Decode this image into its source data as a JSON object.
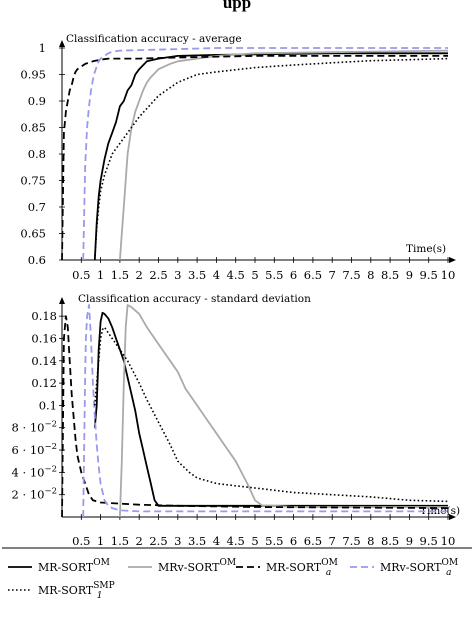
{
  "page_heading": "upp",
  "chart_data": [
    {
      "type": "line",
      "title": "Classification accuracy - average",
      "xlabel": "Time(s)",
      "ylabel": "",
      "xlim": [
        0,
        10
      ],
      "ylim": [
        0.6,
        1
      ],
      "x_ticks": [
        "0.5",
        "1",
        "1.5",
        "2",
        "2.5",
        "3",
        "3.5",
        "4",
        "4.5",
        "5",
        "5.5",
        "6",
        "6.5",
        "7",
        "7.5",
        "8",
        "8.5",
        "9",
        "9.5",
        "10"
      ],
      "y_ticks": [
        "0.6",
        "0.65",
        "0.7",
        "0.75",
        "0.8",
        "0.85",
        "0.9",
        "0.95",
        "1"
      ],
      "y_tick_values": [
        0.6,
        0.65,
        0.7,
        0.75,
        0.8,
        0.85,
        0.9,
        0.95,
        1
      ],
      "series": [
        {
          "name": "MR-SORT^OM",
          "x": [
            0.85,
            0.9,
            0.95,
            1.0,
            1.1,
            1.2,
            1.3,
            1.4,
            1.5,
            1.6,
            1.7,
            1.8,
            1.9,
            2.0,
            2.2,
            2.5,
            3.0,
            4.0,
            5.0,
            7.0,
            10.0
          ],
          "y": [
            0.6,
            0.67,
            0.72,
            0.75,
            0.79,
            0.82,
            0.84,
            0.86,
            0.89,
            0.9,
            0.92,
            0.93,
            0.95,
            0.96,
            0.975,
            0.98,
            0.985,
            0.987,
            0.988,
            0.99,
            0.99
          ]
        },
        {
          "name": "MRv-SORT^OM",
          "x": [
            1.5,
            1.55,
            1.6,
            1.65,
            1.7,
            1.8,
            1.9,
            2.0,
            2.1,
            2.2,
            2.3,
            2.5,
            2.8,
            3.0,
            3.5,
            4.0,
            5.0,
            7.0,
            10.0
          ],
          "y": [
            0.6,
            0.65,
            0.7,
            0.75,
            0.8,
            0.85,
            0.88,
            0.9,
            0.92,
            0.935,
            0.945,
            0.96,
            0.97,
            0.975,
            0.98,
            0.985,
            0.99,
            0.992,
            0.995
          ]
        },
        {
          "name": "MR-SORT_a^OM",
          "x": [
            0.0,
            0.05,
            0.1,
            0.15,
            0.2,
            0.25,
            0.3,
            0.35,
            0.4,
            0.5,
            0.6,
            0.8,
            1.0,
            1.2,
            1.5,
            2.0,
            3.0,
            5.0,
            10.0
          ],
          "y": [
            0.6,
            0.84,
            0.88,
            0.9,
            0.92,
            0.93,
            0.945,
            0.955,
            0.96,
            0.965,
            0.97,
            0.975,
            0.978,
            0.98,
            0.98,
            0.98,
            0.982,
            0.985,
            0.985
          ]
        },
        {
          "name": "MRv-SORT_a^OM",
          "x": [
            0.55,
            0.6,
            0.65,
            0.7,
            0.75,
            0.8,
            0.85,
            0.9,
            0.95,
            1.0,
            1.1,
            1.2,
            1.3,
            1.5,
            2.0,
            3.0,
            4.0,
            10.0
          ],
          "y": [
            0.6,
            0.78,
            0.85,
            0.89,
            0.92,
            0.94,
            0.955,
            0.965,
            0.975,
            0.98,
            0.985,
            0.99,
            0.993,
            0.995,
            0.996,
            0.998,
            1.0,
            1.0
          ]
        },
        {
          "name": "MR-SORT_1^SMP",
          "x": [
            0.85,
            0.9,
            0.95,
            1.0,
            1.1,
            1.2,
            1.3,
            1.4,
            1.5,
            1.7,
            2.0,
            2.5,
            3.0,
            3.5,
            4.0,
            5.0,
            6.0,
            7.0,
            8.0,
            9.0,
            10.0
          ],
          "y": [
            0.6,
            0.66,
            0.7,
            0.73,
            0.76,
            0.78,
            0.8,
            0.81,
            0.82,
            0.84,
            0.87,
            0.91,
            0.935,
            0.95,
            0.955,
            0.963,
            0.968,
            0.972,
            0.976,
            0.978,
            0.98
          ]
        }
      ]
    },
    {
      "type": "line",
      "title": "Classification accuracy - standard deviation",
      "xlabel": "Time(s)",
      "ylabel": "",
      "xlim": [
        0,
        10
      ],
      "ylim": [
        0,
        0.19
      ],
      "x_ticks": [
        "0.5",
        "1",
        "1.5",
        "2",
        "2.5",
        "3",
        "3.5",
        "4",
        "4.5",
        "5",
        "5.5",
        "6",
        "6.5",
        "7",
        "7.5",
        "8",
        "8.5",
        "9",
        "9.5",
        "10"
      ],
      "y_ticks": [
        "2 · 10^−2",
        "4 · 10^−2",
        "6 · 10^−2",
        "8 · 10^−2",
        "0.1",
        "0.12",
        "0.14",
        "0.16",
        "0.18"
      ],
      "y_tick_values": [
        0.02,
        0.04,
        0.06,
        0.08,
        0.1,
        0.12,
        0.14,
        0.16,
        0.18
      ],
      "series": [
        {
          "name": "MR-SORT^OM",
          "x": [
            0.85,
            0.9,
            0.95,
            1.0,
            1.05,
            1.1,
            1.2,
            1.3,
            1.4,
            1.5,
            1.6,
            1.7,
            1.8,
            1.9,
            2.0,
            2.1,
            2.2,
            2.3,
            2.4,
            2.5,
            3.0,
            5.0,
            10.0
          ],
          "y": [
            0.08,
            0.1,
            0.15,
            0.175,
            0.183,
            0.182,
            0.178,
            0.17,
            0.16,
            0.15,
            0.14,
            0.125,
            0.11,
            0.095,
            0.075,
            0.06,
            0.045,
            0.03,
            0.015,
            0.01,
            0.01,
            0.01,
            0.01
          ]
        },
        {
          "name": "MRv-SORT^OM",
          "x": [
            1.5,
            1.55,
            1.6,
            1.65,
            1.7,
            1.8,
            2.0,
            2.2,
            2.5,
            2.8,
            3.0,
            3.2,
            3.5,
            3.8,
            4.0,
            4.2,
            4.5,
            4.8,
            5.0,
            5.2,
            5.5,
            6.0,
            7.0,
            10.0
          ],
          "y": [
            0.0,
            0.05,
            0.12,
            0.17,
            0.19,
            0.188,
            0.182,
            0.17,
            0.155,
            0.14,
            0.13,
            0.115,
            0.1,
            0.085,
            0.075,
            0.065,
            0.05,
            0.03,
            0.015,
            0.01,
            0.01,
            0.009,
            0.009,
            0.009
          ]
        },
        {
          "name": "MR-SORT_a^OM",
          "x": [
            0.0,
            0.05,
            0.1,
            0.15,
            0.2,
            0.25,
            0.3,
            0.35,
            0.4,
            0.5,
            0.6,
            0.7,
            0.8,
            1.0,
            1.5,
            2.0,
            3.0,
            5.0,
            10.0
          ],
          "y": [
            0.0,
            0.16,
            0.18,
            0.17,
            0.14,
            0.11,
            0.09,
            0.07,
            0.055,
            0.04,
            0.03,
            0.02,
            0.015,
            0.013,
            0.012,
            0.011,
            0.01,
            0.009,
            0.008
          ]
        },
        {
          "name": "MRv-SORT_a^OM",
          "x": [
            0.55,
            0.6,
            0.62,
            0.65,
            0.7,
            0.75,
            0.8,
            0.85,
            0.9,
            0.95,
            1.0,
            1.1,
            1.2,
            1.3,
            1.5,
            2.0,
            3.0,
            10.0
          ],
          "y": [
            0.0,
            0.13,
            0.16,
            0.18,
            0.19,
            0.16,
            0.12,
            0.09,
            0.065,
            0.045,
            0.03,
            0.015,
            0.01,
            0.008,
            0.006,
            0.005,
            0.005,
            0.005
          ]
        },
        {
          "name": "MR-SORT_1^SMP",
          "x": [
            0.85,
            0.9,
            1.0,
            1.05,
            1.1,
            1.2,
            1.3,
            1.5,
            1.7,
            2.0,
            2.2,
            2.5,
            2.8,
            3.0,
            3.3,
            3.5,
            4.0,
            4.5,
            5.0,
            6.0,
            7.0,
            8.0,
            9.0,
            10.0
          ],
          "y": [
            0.1,
            0.12,
            0.16,
            0.168,
            0.17,
            0.165,
            0.16,
            0.15,
            0.14,
            0.12,
            0.105,
            0.085,
            0.065,
            0.05,
            0.04,
            0.035,
            0.03,
            0.028,
            0.026,
            0.022,
            0.02,
            0.018,
            0.015,
            0.014
          ]
        }
      ]
    }
  ],
  "legend": [
    {
      "name": "MR-SORT^OM",
      "color": "#000000",
      "dash": "solid",
      "label_main": "MR-SORT",
      "label_sup": "OM",
      "label_sub": ""
    },
    {
      "name": "MRv-SORT^OM",
      "color": "#aaaaaa",
      "dash": "solid",
      "label_main": "MRv-SORT",
      "label_sup": "OM",
      "label_sub": ""
    },
    {
      "name": "MR-SORT_a^OM",
      "color": "#000000",
      "dash": "dashed",
      "label_main": "MR-SORT",
      "label_sup": "OM",
      "label_sub": "a"
    },
    {
      "name": "MRv-SORT_a^OM",
      "color": "#9999ee",
      "dash": "dashed",
      "label_main": "MRv-SORT",
      "label_sup": "OM",
      "label_sub": "a"
    },
    {
      "name": "MR-SORT_1^SMP",
      "color": "#000000",
      "dash": "dotted",
      "label_main": "MR-SORT",
      "label_sup": "SMP",
      "label_sub": "1"
    }
  ]
}
